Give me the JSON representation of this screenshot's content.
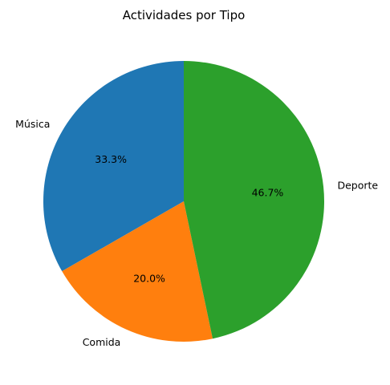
{
  "chart_data": {
    "type": "pie",
    "title": "Actividades por Tipo",
    "categories": [
      "Música",
      "Comida",
      "Deporte"
    ],
    "values": [
      33.3,
      20.0,
      46.7
    ],
    "percent_labels": [
      "33.3%",
      "20.0%",
      "46.7%"
    ],
    "colors": [
      "#1f77b4",
      "#ff7f0e",
      "#2ca02c"
    ],
    "start_angle_deg": 90,
    "direction": "counterclockwise",
    "legend": "none",
    "grid": false
  }
}
